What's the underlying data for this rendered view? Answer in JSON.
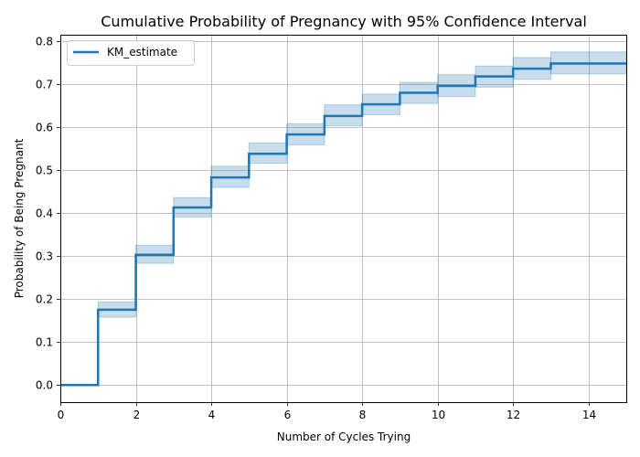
{
  "chart_data": {
    "type": "line",
    "title": "Cumulative Probability of Pregnancy with 95% Confidence Interval",
    "xlabel": "Number of Cycles Trying",
    "ylabel": "Probability of Being Pregnant",
    "xlim": [
      0,
      15
    ],
    "ylim": [
      -0.04,
      0.815
    ],
    "xticks": [
      0,
      2,
      4,
      6,
      8,
      10,
      12,
      14
    ],
    "yticks": [
      0.0,
      0.1,
      0.2,
      0.3,
      0.4,
      0.5,
      0.6,
      0.7,
      0.8
    ],
    "xtick_labels": [
      "0",
      "2",
      "4",
      "6",
      "8",
      "10",
      "12",
      "14"
    ],
    "ytick_labels": [
      "0.0",
      "0.1",
      "0.2",
      "0.3",
      "0.4",
      "0.5",
      "0.6",
      "0.7",
      "0.8"
    ],
    "grid": true,
    "legend_position": "top-left",
    "series": [
      {
        "name": "KM_estimate",
        "step": "post",
        "color": "#1f77b4",
        "x": [
          0,
          1,
          2,
          3,
          4,
          5,
          6,
          7,
          8,
          9,
          10,
          11,
          12,
          13,
          15
        ],
        "y": [
          0.0,
          0.175,
          0.303,
          0.413,
          0.483,
          0.538,
          0.583,
          0.626,
          0.653,
          0.68,
          0.696,
          0.718,
          0.736,
          0.748,
          0.748
        ],
        "ci_lower": [
          0.0,
          0.158,
          0.283,
          0.391,
          0.46,
          0.516,
          0.559,
          0.603,
          0.629,
          0.655,
          0.671,
          0.693,
          0.711,
          0.724,
          0.724
        ],
        "ci_upper": [
          0.0,
          0.193,
          0.325,
          0.436,
          0.509,
          0.563,
          0.608,
          0.652,
          0.677,
          0.704,
          0.722,
          0.742,
          0.762,
          0.775,
          0.775
        ],
        "ci_color": "#1f77b4"
      }
    ]
  }
}
